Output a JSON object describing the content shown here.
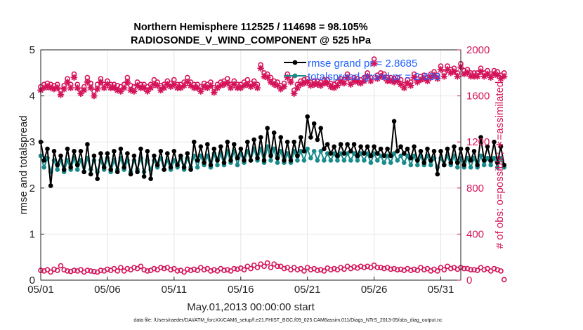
{
  "chart_data": {
    "type": "line",
    "title_line1": "Northern Hemisphere 112525 / 114698 = 98.105%",
    "title_line2": "RADIOSONDE_V_WIND_COMPONENT @ 525 hPa",
    "xlabel": "May.01,2013 00:00:00 start",
    "ylabel_left": "rmse and totalspread",
    "ylabel_right": "# of obs: o=possible; ∗=assimilated",
    "footnote": "data file: /Users/raeder/DAI/ATM_forcXX/CAM6_setup/f.e21.FHIST_BGC.f09_025.CAM6assim.011/Diags_NTrS_2013-05/obs_diag_output.nc",
    "xlim": [
      1,
      32.5
    ],
    "ylim_left": [
      0,
      5
    ],
    "ylim_right": [
      0,
      2000
    ],
    "x_ticks": [
      {
        "value": 1,
        "label": "05/01"
      },
      {
        "value": 6,
        "label": "05/06"
      },
      {
        "value": 11,
        "label": "05/11"
      },
      {
        "value": 16,
        "label": "05/16"
      },
      {
        "value": 21,
        "label": "05/21"
      },
      {
        "value": 26,
        "label": "05/26"
      },
      {
        "value": 31,
        "label": "05/31"
      }
    ],
    "y_ticks_left": [
      {
        "value": 0,
        "label": "0"
      },
      {
        "value": 1,
        "label": "1"
      },
      {
        "value": 2,
        "label": "2"
      },
      {
        "value": 3,
        "label": "3"
      },
      {
        "value": 4,
        "label": "4"
      },
      {
        "value": 5,
        "label": "5"
      }
    ],
    "y_ticks_right": [
      {
        "value": 0,
        "label": "0"
      },
      {
        "value": 400,
        "label": "400"
      },
      {
        "value": 800,
        "label": "800"
      },
      {
        "value": 1200,
        "label": "1200"
      },
      {
        "value": 1600,
        "label": "1600"
      },
      {
        "value": 2000,
        "label": "2000"
      }
    ],
    "grid": true,
    "legend_position": "top-right",
    "legend": [
      {
        "name": "rmse grand pr = 2.8685",
        "color": "#000000"
      },
      {
        "name": "totalspread grand pr = 2.638",
        "color": "#1a8a8a"
      }
    ],
    "series": [
      {
        "name": "rmse",
        "axis": "left",
        "color": "#000000",
        "marker": "dot",
        "x_start": 1,
        "x_step": 0.25,
        "values": [
          3.0,
          2.6,
          2.85,
          2.05,
          2.8,
          2.5,
          2.7,
          2.4,
          2.85,
          2.45,
          2.8,
          2.5,
          2.8,
          2.35,
          2.95,
          2.3,
          2.7,
          2.2,
          2.75,
          2.45,
          2.75,
          2.4,
          2.8,
          2.35,
          2.85,
          2.45,
          2.75,
          2.3,
          2.7,
          2.35,
          2.85,
          2.25,
          2.8,
          2.2,
          2.7,
          2.5,
          2.8,
          2.4,
          2.75,
          2.45,
          2.8,
          2.5,
          2.7,
          2.45,
          2.75,
          2.4,
          3.0,
          2.6,
          2.9,
          2.55,
          2.95,
          2.5,
          2.85,
          2.6,
          2.9,
          2.55,
          3.0,
          2.6,
          2.95,
          2.65,
          2.85,
          2.6,
          3.0,
          2.6,
          3.05,
          2.65,
          3.1,
          2.6,
          3.3,
          2.7,
          3.2,
          2.65,
          3.1,
          2.6,
          3.0,
          2.6,
          3.0,
          2.7,
          3.1,
          2.8,
          3.55,
          3.1,
          3.4,
          3.05,
          3.3,
          2.85,
          2.95,
          2.75,
          2.9,
          2.7,
          2.95,
          2.75,
          2.95,
          2.8,
          2.95,
          2.7,
          2.9,
          2.75,
          2.9,
          2.7,
          2.9,
          2.75,
          2.85,
          2.7,
          2.85,
          2.7,
          3.45,
          2.8,
          2.9,
          2.75,
          2.85,
          2.65,
          2.9,
          2.6,
          2.8,
          2.55,
          2.85,
          2.6,
          2.8,
          2.3,
          2.8,
          2.5,
          2.85,
          2.55,
          2.9,
          2.55,
          2.85,
          2.5,
          2.85,
          2.6,
          2.8,
          2.5,
          3.1,
          2.6,
          2.9,
          2.6,
          3.0,
          2.55,
          2.9,
          2.5
        ]
      },
      {
        "name": "totalspread",
        "axis": "left",
        "color": "#1a8a8a",
        "marker": "dot",
        "x_start": 1,
        "x_step": 0.25,
        "values": [
          2.7,
          2.45,
          2.65,
          2.35,
          2.6,
          2.4,
          2.6,
          2.35,
          2.6,
          2.4,
          2.65,
          2.4,
          2.6,
          2.35,
          2.65,
          2.4,
          2.6,
          2.35,
          2.6,
          2.4,
          2.65,
          2.35,
          2.6,
          2.4,
          2.65,
          2.4,
          2.6,
          2.35,
          2.6,
          2.4,
          2.65,
          2.35,
          2.6,
          2.4,
          2.6,
          2.45,
          2.65,
          2.4,
          2.6,
          2.4,
          2.6,
          2.45,
          2.65,
          2.4,
          2.65,
          2.45,
          2.7,
          2.45,
          2.7,
          2.5,
          2.7,
          2.45,
          2.75,
          2.5,
          2.75,
          2.5,
          2.8,
          2.55,
          2.8,
          2.5,
          2.75,
          2.55,
          2.8,
          2.6,
          2.85,
          2.6,
          2.85,
          2.55,
          2.9,
          2.6,
          2.85,
          2.55,
          2.8,
          2.55,
          2.75,
          2.55,
          2.8,
          2.6,
          2.8,
          2.6,
          2.85,
          2.65,
          2.8,
          2.6,
          2.8,
          2.6,
          2.75,
          2.6,
          2.75,
          2.6,
          2.75,
          2.6,
          2.75,
          2.6,
          2.75,
          2.6,
          2.75,
          2.6,
          2.75,
          2.55,
          2.75,
          2.6,
          2.7,
          2.55,
          2.7,
          2.55,
          2.75,
          2.6,
          2.7,
          2.55,
          2.7,
          2.5,
          2.7,
          2.5,
          2.7,
          2.5,
          2.7,
          2.5,
          2.65,
          2.45,
          2.65,
          2.5,
          2.7,
          2.5,
          2.7,
          2.45,
          2.65,
          2.45,
          2.65,
          2.45,
          2.65,
          2.45,
          2.7,
          2.5,
          2.65,
          2.5,
          2.65,
          2.45,
          2.65,
          2.45
        ]
      },
      {
        "name": "obs possible",
        "axis": "right",
        "color": "#d4145a",
        "marker": "circle",
        "x_start": 1,
        "x_step": 0.25,
        "values": [
          1680,
          1700,
          1710,
          1700,
          1690,
          1700,
          1650,
          1690,
          1750,
          1700,
          1790,
          1700,
          1650,
          1680,
          1760,
          1710,
          1640,
          1700,
          1750,
          1700,
          1730,
          1700,
          1700,
          1690,
          1680,
          1700,
          1760,
          1690,
          1680,
          1720,
          1700,
          1700,
          1680,
          1700,
          1740,
          1720,
          1690,
          1700,
          1730,
          1710,
          1740,
          1700,
          1700,
          1720,
          1760,
          1720,
          1700,
          1700,
          1680,
          1710,
          1700,
          1720,
          1670,
          1700,
          1720,
          1730,
          1750,
          1700,
          1730,
          1700,
          1700,
          1720,
          1740,
          1710,
          1730,
          1700,
          1870,
          1800,
          1790,
          1760,
          1730,
          1720,
          1690,
          1710,
          1790,
          1760,
          1650,
          1700,
          1730,
          1740,
          1750,
          1720,
          1730,
          1730,
          1720,
          1740,
          1740,
          1710,
          1700,
          1720,
          1750,
          1740,
          1790,
          1730,
          1760,
          1750,
          1740,
          1760,
          1800,
          1760,
          1920,
          1780,
          1800,
          1790,
          1760,
          1760,
          1750,
          1760,
          1740,
          1700,
          1740,
          1720,
          1790,
          1750,
          1770,
          1780,
          1760,
          1790,
          1810,
          1780,
          1860,
          1800,
          1860,
          1830,
          1840,
          1800,
          1880,
          1820,
          1830,
          1800,
          1800,
          1800,
          1840,
          1800,
          1820,
          1790,
          1820,
          1810,
          1780,
          1800
        ]
      },
      {
        "name": "obs assimilated",
        "axis": "right",
        "color": "#d4145a",
        "marker": "star",
        "x_start": 1,
        "x_step": 0.25,
        "values": [
          1650,
          1670,
          1680,
          1670,
          1660,
          1670,
          1610,
          1660,
          1720,
          1670,
          1760,
          1670,
          1620,
          1650,
          1720,
          1670,
          1600,
          1660,
          1720,
          1670,
          1700,
          1670,
          1670,
          1650,
          1640,
          1670,
          1720,
          1650,
          1640,
          1690,
          1670,
          1670,
          1640,
          1670,
          1700,
          1690,
          1650,
          1670,
          1700,
          1680,
          1700,
          1670,
          1670,
          1690,
          1720,
          1690,
          1670,
          1670,
          1640,
          1680,
          1670,
          1690,
          1630,
          1670,
          1690,
          1700,
          1710,
          1670,
          1700,
          1670,
          1670,
          1690,
          1700,
          1680,
          1700,
          1670,
          1840,
          1770,
          1760,
          1720,
          1700,
          1690,
          1660,
          1680,
          1760,
          1720,
          1620,
          1670,
          1700,
          1710,
          1720,
          1690,
          1700,
          1700,
          1690,
          1710,
          1710,
          1680,
          1670,
          1690,
          1720,
          1710,
          1760,
          1700,
          1730,
          1720,
          1710,
          1730,
          1770,
          1730,
          1880,
          1750,
          1770,
          1760,
          1730,
          1730,
          1720,
          1730,
          1700,
          1670,
          1710,
          1690,
          1760,
          1720,
          1740,
          1750,
          1730,
          1760,
          1780,
          1750,
          1830,
          1770,
          1830,
          1800,
          1810,
          1770,
          1850,
          1790,
          1800,
          1770,
          1770,
          1770,
          1810,
          1770,
          1790,
          1760,
          1790,
          1780,
          1750,
          1770
        ]
      },
      {
        "name": "obs bottom possible",
        "axis": "right",
        "color": "#d4145a",
        "marker": "circle",
        "x_start": 1,
        "x_step": 0.25,
        "values": [
          85,
          80,
          90,
          70,
          95,
          85,
          125,
          90,
          80,
          75,
          85,
          80,
          90,
          70,
          85,
          80,
          75,
          70,
          85,
          80,
          95,
          85,
          100,
          80,
          110,
          80,
          100,
          90,
          110,
          100,
          120,
          90,
          80,
          85,
          100,
          90,
          110,
          100,
          110,
          90,
          100,
          80,
          85,
          70,
          95,
          85,
          95,
          85,
          110,
          90,
          100,
          80,
          90,
          80,
          100,
          85,
          90,
          80,
          100,
          95,
          105,
          90,
          120,
          100,
          130,
          110,
          140,
          120,
          150,
          110,
          140,
          120,
          120,
          100,
          110,
          90,
          110,
          90,
          100,
          80,
          110,
          90,
          100,
          85,
          90,
          80,
          105,
          90,
          100,
          90,
          110,
          95,
          120,
          100,
          115,
          105,
          120,
          110,
          120,
          110,
          130,
          110,
          110,
          100,
          110,
          95,
          100,
          90,
          95,
          85,
          100,
          85,
          95,
          85,
          110,
          90,
          100,
          80,
          95,
          80,
          110,
          90,
          120,
          100,
          110,
          95,
          110,
          100,
          100,
          90,
          90,
          85,
          110,
          90,
          100,
          80,
          100,
          90,
          80,
          5
        ]
      }
    ]
  }
}
